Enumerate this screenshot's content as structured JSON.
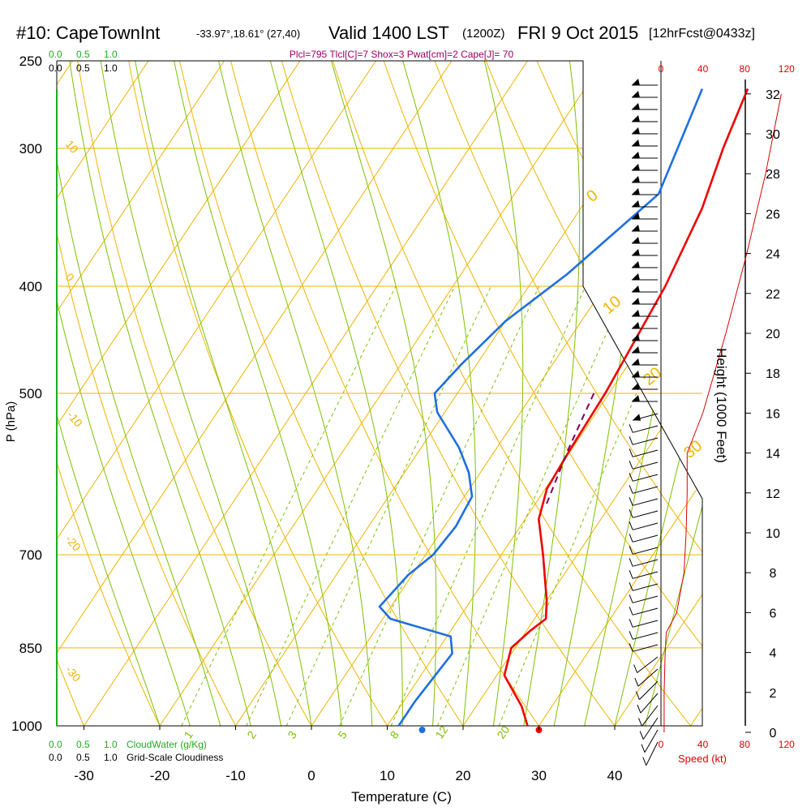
{
  "title": {
    "station": "#10: CapeTownInt",
    "coords": "-33.97°,18.61° (27,40)",
    "valid": "Valid 1400 LST",
    "zulu": "(1200Z)",
    "date": "FRI 9 Oct 2015",
    "forecast": "[12hrFcst@0433z]"
  },
  "subtitle": "Plcl=795 Tlcl[C]=7 Shox=3 Pwat[cm]=2 Cape[J]= 70",
  "cloud_scale": {
    "top_green": [
      "0.0",
      "0.5",
      "1.0"
    ],
    "top_black": [
      "0.0",
      "0.5",
      "1.0"
    ],
    "bottom_green": [
      "0.0",
      "0.5",
      "1.0"
    ],
    "bottom_black": [
      "0.0",
      "0.5",
      "1.0"
    ],
    "cloudwater_label": "CloudWater (g/Kg)",
    "cloudiness_label": "Grid-Scale Cloudiness"
  },
  "colors": {
    "isotherm": "#f0b400",
    "dry_adiabat": "#f0b400",
    "moist_adiabat": "#7cc000",
    "mixing_ratio": "#7cc000",
    "temperature": "#ee0000",
    "dewpoint": "#1e6fe0",
    "parcel": "#800060",
    "speed": "#dd0000",
    "cloud": "#22aa22"
  },
  "chart_data": {
    "type": "line",
    "title": "#10: CapeTownInt Valid 1400 LST (1200Z) FRI 9 Oct 2015 [12hrFcst@0433z]",
    "xlabel": "Temperature (C)",
    "ylabel": "P (hPa)",
    "right_label": "Height (1000 Feet)",
    "speed_label": "Speed (kt)",
    "xlim": [
      -35,
      45
    ],
    "x_ticks": [
      "-30",
      "-20",
      "-10",
      "0",
      "10",
      "20",
      "30",
      "40"
    ],
    "pressure_ticks": [
      "250",
      "300",
      "400",
      "500",
      "700",
      "850",
      "1000"
    ],
    "height_ticks": [
      "0",
      "2",
      "4",
      "6",
      "8",
      "10",
      "12",
      "14",
      "16",
      "18",
      "20",
      "22",
      "24",
      "26",
      "28",
      "30",
      "32"
    ],
    "speed_ticks": [
      "0",
      "40",
      "80",
      "120"
    ],
    "dry_adiabat_labels": [
      "10",
      "0",
      "-10",
      "-20",
      "-30"
    ],
    "moist_adiabat_labels": [
      "0",
      "10",
      "20",
      "30"
    ],
    "mixing_ratio_labels": [
      "1",
      "2",
      "3",
      "5",
      "8",
      "12",
      "20"
    ],
    "series": [
      {
        "name": "Temperature",
        "points": [
          [
            28.5,
            1000
          ],
          [
            26,
            960
          ],
          [
            21,
            900
          ],
          [
            19.5,
            850
          ],
          [
            20.5,
            820
          ],
          [
            21.5,
            800
          ],
          [
            20,
            770
          ],
          [
            15.5,
            700
          ],
          [
            11.8,
            650
          ],
          [
            10.2,
            610
          ],
          [
            9.8,
            560
          ],
          [
            9.5,
            500
          ],
          [
            8.0,
            400
          ],
          [
            6.0,
            340
          ],
          [
            3.5,
            300
          ],
          [
            1.5,
            265
          ]
        ]
      },
      {
        "name": "Dewpoint",
        "points": [
          [
            11.5,
            1000
          ],
          [
            11.5,
            950
          ],
          [
            12.2,
            860
          ],
          [
            10.5,
            830
          ],
          [
            1,
            800
          ],
          [
            -1.5,
            780
          ],
          [
            -0.5,
            730
          ],
          [
            1.0,
            700
          ],
          [
            1.5,
            660
          ],
          [
            1,
            620
          ],
          [
            -1.5,
            590
          ],
          [
            -5,
            560
          ],
          [
            -11,
            520
          ],
          [
            -13,
            500
          ],
          [
            -12,
            470
          ],
          [
            -10,
            430
          ],
          [
            -6,
            390
          ],
          [
            -1,
            330
          ],
          [
            -2.5,
            300
          ],
          [
            -4.5,
            265
          ]
        ]
      },
      {
        "name": "Parcel",
        "points": [
          [
            8.0,
            500
          ],
          [
            9.5,
            560
          ],
          [
            11.5,
            630
          ]
        ]
      }
    ],
    "surface_points": [
      {
        "name": "dewpoint",
        "value": 14.6
      },
      {
        "name": "temperature",
        "value": 30.0
      }
    ],
    "speed_profile": [
      [
        3,
        0
      ],
      [
        3,
        2
      ],
      [
        4,
        4
      ],
      [
        5,
        5
      ],
      [
        15,
        6
      ],
      [
        22,
        8
      ],
      [
        24,
        10
      ],
      [
        25,
        12
      ],
      [
        25,
        14
      ],
      [
        40,
        16
      ],
      [
        62,
        20
      ],
      [
        82,
        24
      ],
      [
        100,
        28
      ],
      [
        115,
        32
      ]
    ]
  }
}
